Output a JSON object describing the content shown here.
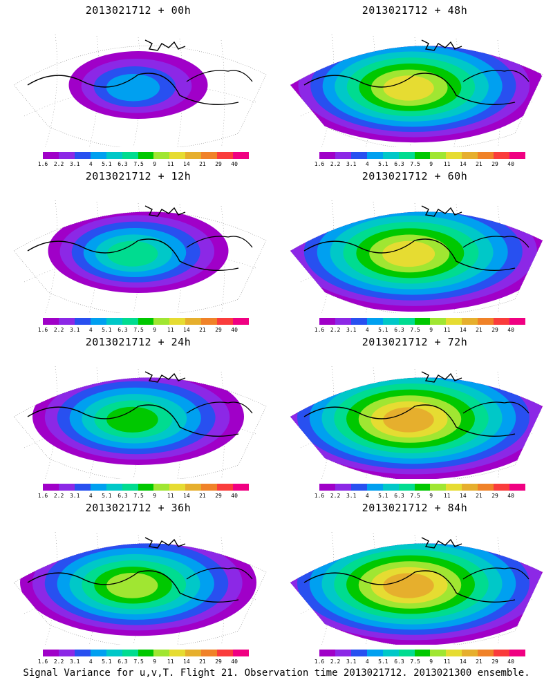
{
  "panels": [
    {
      "title": "2013021712 + 00h",
      "col": 0,
      "row": 0,
      "level": 0.15
    },
    {
      "title": "2013021712 + 12h",
      "col": 0,
      "row": 1,
      "level": 0.35
    },
    {
      "title": "2013021712 + 24h",
      "col": 0,
      "row": 2,
      "level": 0.5
    },
    {
      "title": "2013021712 + 36h",
      "col": 0,
      "row": 3,
      "level": 0.62
    },
    {
      "title": "2013021712 + 48h",
      "col": 1,
      "row": 0,
      "level": 0.72
    },
    {
      "title": "2013021712 + 60h",
      "col": 1,
      "row": 1,
      "level": 0.8
    },
    {
      "title": "2013021712 + 72h",
      "col": 1,
      "row": 2,
      "level": 0.85
    },
    {
      "title": "2013021712 + 84h",
      "col": 1,
      "row": 3,
      "level": 0.85
    }
  ],
  "colorbar": {
    "ticks": [
      "1.6",
      "2.2",
      "3.1",
      "4",
      "5.1",
      "6.3",
      "7.5",
      "9",
      "11",
      "14",
      "21",
      "29",
      "40"
    ],
    "colors": [
      "#a000c8",
      "#8c28e6",
      "#2850f0",
      "#00a0f0",
      "#00c8c8",
      "#00dc90",
      "#00c800",
      "#a0e632",
      "#e6dc32",
      "#e6af2d",
      "#f08228",
      "#fa3c3c",
      "#f00082"
    ]
  },
  "footer": "Signal Variance for u,v,T. Flight 21. Observation time 2013021712. 2013021300 ensemble."
}
